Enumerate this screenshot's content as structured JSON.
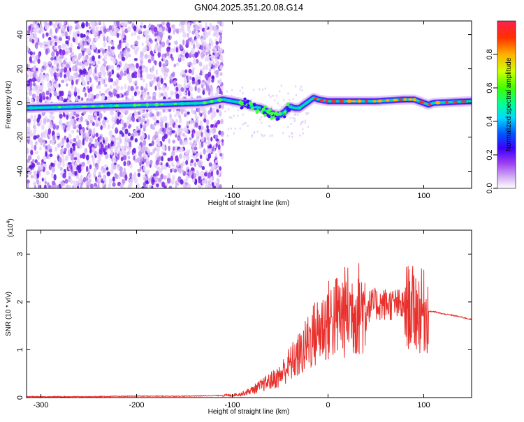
{
  "title": "GN04.2025.351.20.08.G14",
  "chart_data": [
    {
      "type": "heatmap",
      "xlabel": "Height of straight line (km)",
      "ylabel": "Frequency (Hz)",
      "xlim": [
        -315,
        150
      ],
      "ylim": [
        -50,
        48
      ],
      "xticks": [
        -300,
        -200,
        -100,
        0,
        100
      ],
      "yticks": [
        -40,
        -20,
        0,
        20,
        40
      ],
      "colorbar": {
        "label": "Normalized spectral amplitude",
        "range": [
          0,
          1
        ],
        "ticks": [
          "0.0",
          "0.2",
          "0.4",
          "0.6",
          "0.8"
        ]
      },
      "ridge_frequency": {
        "x": [
          -315,
          -250,
          -180,
          -130,
          -110,
          -90,
          -80,
          -70,
          -60,
          -50,
          -45,
          -40,
          -35,
          -30,
          -25,
          -20,
          -15,
          -10,
          0,
          20,
          50,
          80,
          90,
          95,
          100,
          105,
          110,
          150
        ],
        "y": [
          -3,
          -2,
          -1,
          0,
          2,
          0,
          -2,
          -3,
          -6,
          -7,
          -5,
          -2,
          -3,
          -3,
          -1,
          1,
          3,
          2,
          1,
          1,
          1,
          2,
          2,
          1,
          0,
          -1,
          0,
          1
        ]
      }
    },
    {
      "type": "line",
      "xlabel": "Height of straight line (km)",
      "ylabel": "SNR (10 * v/v)",
      "y_multiplier": "(x10",
      "y_multiplier_exp": "4",
      "xlim": [
        -315,
        150
      ],
      "ylim": [
        0,
        3.5
      ],
      "xticks": [
        -300,
        -200,
        -100,
        0,
        100
      ],
      "yticks": [
        0,
        1,
        2,
        3
      ],
      "color": "#e8302c",
      "series": [
        {
          "x": [
            -315,
            -250,
            -200,
            -150,
            -120,
            -100,
            -90,
            -80,
            -70,
            -60,
            -50,
            -45,
            -40,
            -35,
            -30,
            -25,
            -20,
            -15,
            -10,
            -5,
            0,
            10,
            20,
            30,
            40,
            50,
            60,
            70,
            80,
            85,
            90,
            95,
            100,
            105,
            110,
            120,
            130,
            140,
            150
          ],
          "y": [
            0.02,
            0.02,
            0.03,
            0.03,
            0.04,
            0.05,
            0.08,
            0.15,
            0.25,
            0.35,
            0.45,
            0.6,
            0.7,
            0.8,
            0.9,
            1.0,
            1.2,
            1.3,
            1.4,
            1.5,
            1.6,
            1.7,
            1.8,
            1.85,
            1.9,
            1.95,
            1.95,
            1.95,
            1.9,
            1.9,
            1.85,
            1.8,
            1.8,
            1.8,
            1.8,
            1.75,
            1.72,
            1.68,
            1.63
          ]
        }
      ]
    }
  ]
}
